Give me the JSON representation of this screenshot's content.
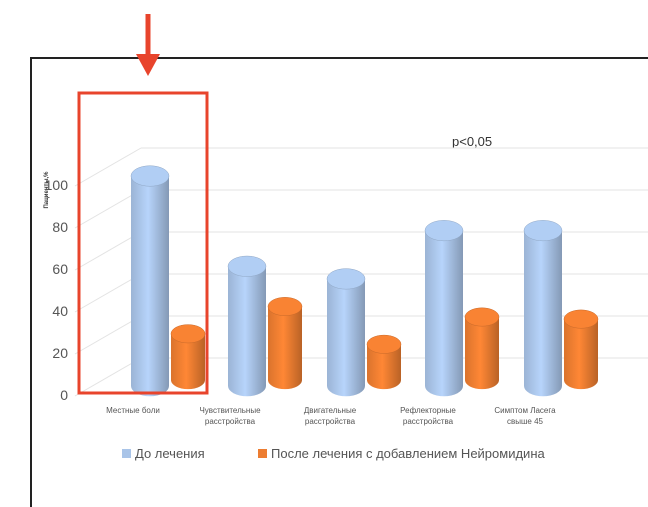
{
  "chart_data": {
    "type": "bar",
    "title": "",
    "xlabel": "",
    "ylabel": "Пациенты,%",
    "ylim": [
      0,
      100
    ],
    "yticks": [
      0,
      20,
      40,
      60,
      80,
      100
    ],
    "categories": [
      [
        "Местные боли"
      ],
      [
        "Чувствительные",
        "расстройства"
      ],
      [
        "Двигательные",
        "расстройства"
      ],
      [
        "Рефлекторные",
        "расстройства"
      ],
      [
        "Симптом Ласега",
        "свыше 45"
      ]
    ],
    "series": [
      {
        "name": "До лечения",
        "values": [
          100,
          57,
          51,
          74,
          74
        ],
        "color": "#a9c4e8"
      },
      {
        "name": "После лечения с добавлением Нейромидина",
        "values": [
          22,
          35,
          17,
          30,
          29
        ],
        "color": "#ed7d31"
      }
    ],
    "annotation": "p<0,05",
    "grid": true,
    "legend_position": "bottom",
    "highlight_category": 0,
    "highlight_color": "#e8442c"
  }
}
